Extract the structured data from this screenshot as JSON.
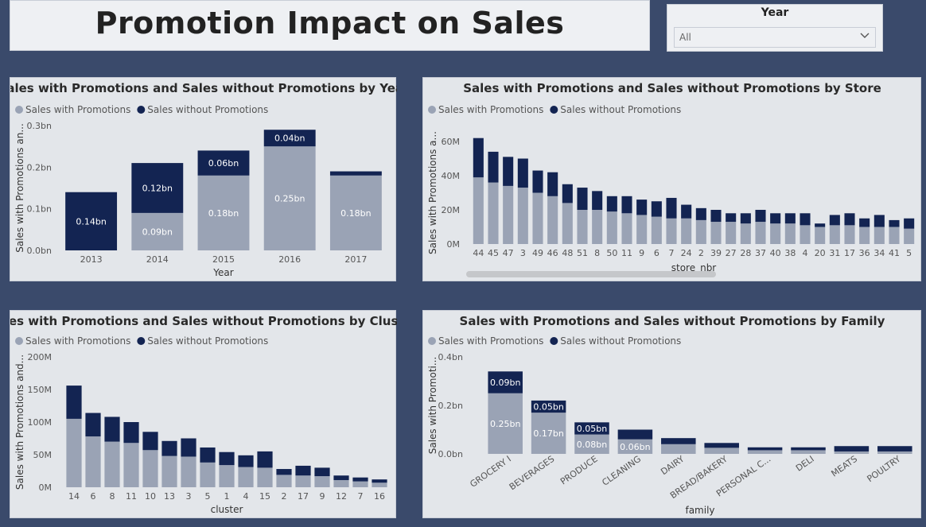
{
  "header": {
    "title": "Promotion Impact on Sales"
  },
  "slicer": {
    "label": "Year",
    "value": "All",
    "icon": "chevron-down-icon"
  },
  "colors": {
    "with": "#9aa3b5",
    "without": "#132452",
    "title_bg": "#eef0f3",
    "panel_bg": "#e3e6ea",
    "page_bg": "#3a4a6b"
  },
  "legend": {
    "with": "Sales with Promotions",
    "without": "Sales without Promotions"
  },
  "chart_data": [
    {
      "id": "year",
      "type": "bar",
      "stacked": true,
      "title": "Sales with Promotions and Sales without Promotions by Year",
      "xlabel": "Year",
      "ylabel": "Sales with Promotions an...",
      "ylim": [
        0,
        0.3
      ],
      "yticks": [
        "0.0bn",
        "0.1bn",
        "0.2bn",
        "0.3bn"
      ],
      "categories": [
        "2013",
        "2014",
        "2015",
        "2016",
        "2017"
      ],
      "series": [
        {
          "name": "Sales with Promotions",
          "values": [
            0.0,
            0.09,
            0.18,
            0.25,
            0.18
          ],
          "labels": [
            "",
            "0.09bn",
            "0.18bn",
            "0.25bn",
            "0.18bn"
          ]
        },
        {
          "name": "Sales without Promotions",
          "values": [
            0.14,
            0.12,
            0.06,
            0.04,
            0.01
          ],
          "labels": [
            "0.14bn",
            "0.12bn",
            "0.06bn",
            "0.04bn",
            ""
          ]
        }
      ]
    },
    {
      "id": "store",
      "type": "bar",
      "stacked": true,
      "title": "Sales with Promotions and Sales without Promotions by Store",
      "xlabel": "store_nbr",
      "ylabel": "Sales with Promotions a...",
      "ylim": [
        0,
        60
      ],
      "yticks": [
        "0M",
        "20M",
        "40M",
        "60M"
      ],
      "categories": [
        "44",
        "45",
        "47",
        "3",
        "49",
        "46",
        "48",
        "51",
        "8",
        "50",
        "11",
        "9",
        "6",
        "7",
        "24",
        "2",
        "39",
        "27",
        "28",
        "37",
        "40",
        "38",
        "4",
        "20",
        "31",
        "17",
        "36",
        "34",
        "41",
        "5"
      ],
      "series": [
        {
          "name": "Sales with Promotions",
          "values": [
            39,
            36,
            34,
            33,
            30,
            28,
            24,
            20,
            20,
            19,
            18,
            17,
            16,
            15,
            15,
            14,
            13,
            13,
            12,
            13,
            12,
            12,
            11,
            10,
            11,
            11,
            10,
            10,
            10,
            9
          ]
        },
        {
          "name": "Sales without Promotions",
          "values": [
            23,
            18,
            17,
            17,
            13,
            14,
            11,
            13,
            11,
            9,
            10,
            9,
            9,
            12,
            8,
            7,
            7,
            5,
            6,
            7,
            6,
            6,
            7,
            2,
            6,
            7,
            5,
            7,
            4,
            6
          ]
        }
      ]
    },
    {
      "id": "cluster",
      "type": "bar",
      "stacked": true,
      "title": "Sales with Promotions and Sales without Promotions by Cluster",
      "xlabel": "cluster",
      "ylabel": "Sales with Promotions and...",
      "ylim": [
        0,
        200
      ],
      "yticks": [
        "0M",
        "50M",
        "100M",
        "150M",
        "200M"
      ],
      "categories": [
        "14",
        "6",
        "8",
        "11",
        "10",
        "13",
        "3",
        "5",
        "1",
        "4",
        "15",
        "2",
        "17",
        "9",
        "12",
        "7",
        "16"
      ],
      "series": [
        {
          "name": "Sales with Promotions",
          "values": [
            105,
            78,
            70,
            68,
            57,
            48,
            47,
            38,
            34,
            31,
            30,
            19,
            18,
            17,
            11,
            9,
            7
          ]
        },
        {
          "name": "Sales without Promotions",
          "values": [
            51,
            36,
            38,
            32,
            28,
            23,
            28,
            23,
            20,
            18,
            25,
            9,
            15,
            13,
            7,
            6,
            5
          ]
        }
      ]
    },
    {
      "id": "family",
      "type": "bar",
      "stacked": true,
      "title": "Sales with Promotions and Sales without Promotions by Family",
      "xlabel": "family",
      "ylabel": "Sales with Promoti...",
      "ylim": [
        0,
        0.4
      ],
      "yticks": [
        "0.0bn",
        "0.2bn",
        "0.4bn"
      ],
      "categories": [
        "GROCERY I",
        "BEVERAGES",
        "PRODUCE",
        "CLEANING",
        "DAIRY",
        "BREAD/BAKERY",
        "PERSONAL C...",
        "DELI",
        "MEATS",
        "POULTRY"
      ],
      "series": [
        {
          "name": "Sales with Promotions",
          "values": [
            0.25,
            0.17,
            0.08,
            0.06,
            0.04,
            0.025,
            0.015,
            0.015,
            0.01,
            0.01
          ],
          "labels": [
            "0.25bn",
            "0.17bn",
            "0.08bn",
            "0.06bn",
            "",
            "",
            "",
            "",
            "",
            ""
          ]
        },
        {
          "name": "Sales without Promotions",
          "values": [
            0.09,
            0.05,
            0.05,
            0.04,
            0.025,
            0.02,
            0.012,
            0.012,
            0.022,
            0.022
          ],
          "labels": [
            "0.09bn",
            "0.05bn",
            "0.05bn",
            "",
            "",
            "",
            "",
            "",
            "",
            ""
          ]
        }
      ]
    }
  ]
}
